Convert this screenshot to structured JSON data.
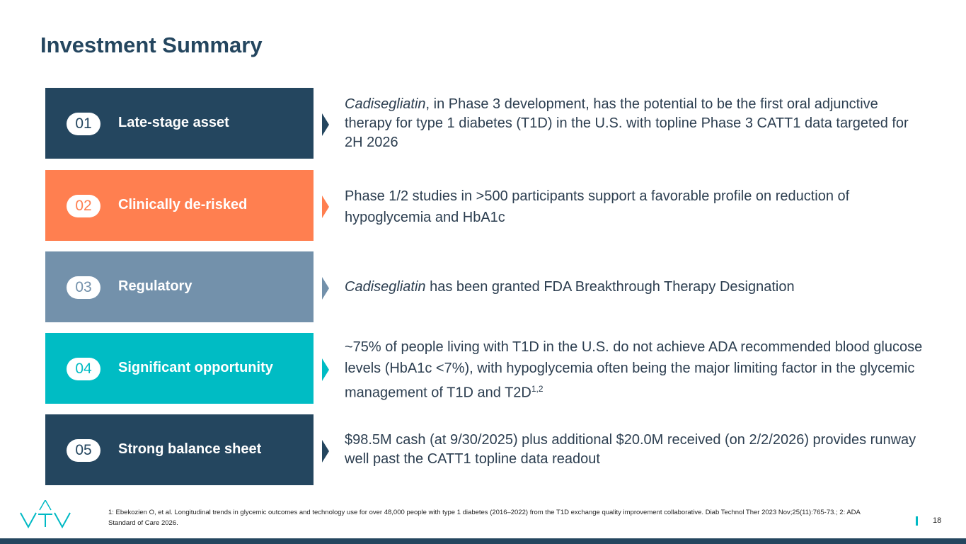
{
  "title": "Investment Summary",
  "colors": {
    "navy": "#24465f",
    "orange": "#ff7f50",
    "slate": "#7391ab",
    "teal": "#00bcc4"
  },
  "items": [
    {
      "number": "01",
      "label": "Late-stage asset",
      "color": "#24465f",
      "desc_em": "Cadisegliatin",
      "desc": ", in Phase 3 development, has the potential to be the first oral adjunctive therapy for type 1 diabetes (T1D) in the U.S. with topline Phase 3 CATT1 data targeted for 2H 2026"
    },
    {
      "number": "02",
      "label": "Clinically de-risked",
      "color": "#ff7f50",
      "desc": "Phase 1/2 studies in >500 participants support a favorable profile on reduction of hypoglycemia and HbA1c"
    },
    {
      "number": "03",
      "label": "Regulatory",
      "color": "#7391ab",
      "desc_em": "Cadisegliatin",
      "desc": " has been granted FDA Breakthrough Therapy Designation"
    },
    {
      "number": "04",
      "label": "Significant opportunity",
      "color": "#00bcc4",
      "desc": "~75% of people living with T1D in the U.S. do not achieve ADA recommended blood glucose levels (HbA1c <7%), with hypoglycemia often being the major limiting factor in the glycemic management of T1D and T2D",
      "desc_sup": "1,2"
    },
    {
      "number": "05",
      "label": "Strong balance sheet",
      "color": "#24465f",
      "desc": "$98.5M cash (at 9/30/2025) plus additional $20.0M received (on 2/2/2026) provides runway well past the CATT1 topline data readout"
    }
  ],
  "footnote": "1: Ebekozien O, et al. Longitudinal trends in glycemic outcomes and technology use for over 48,000 people with type 1 diabetes (2016–2022) from the T1D exchange quality improvement collaborative. Diab Technol Ther 2023 Nov;25(11):765-73.; 2: ADA Standard of Care 2026.",
  "logo_icon": "vtv-logo",
  "page_number": "18"
}
